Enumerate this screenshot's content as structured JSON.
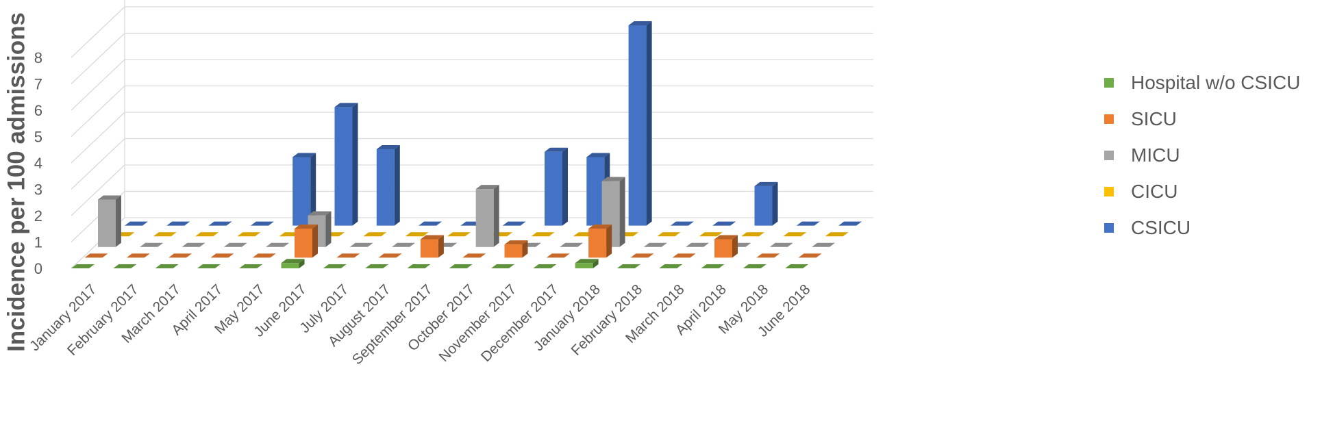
{
  "chart_data": {
    "type": "bar",
    "subtype": "3d-column",
    "title": "",
    "xlabel": "",
    "ylabel": "Incidence per 100 admissions",
    "ylim": [
      0,
      8
    ],
    "yticks": [
      "0",
      "1",
      "2",
      "3",
      "4",
      "5",
      "6",
      "7",
      "8"
    ],
    "grid": true,
    "legend_position": "right",
    "categories": [
      "January 2017",
      "February 2017",
      "March 2017",
      "April 2017",
      "May 2017",
      "June 2017",
      "July 2017",
      "August 2017",
      "September 2017",
      "October 2017",
      "November 2017",
      "December 2017",
      "January 2018",
      "February 2018",
      "March 2018",
      "April 2018",
      "May 2018",
      "June 2018"
    ],
    "series": [
      {
        "name": "Hospital w/o CSICU",
        "color": "#70AD47",
        "values": [
          0,
          0,
          0,
          0,
          0,
          0.2,
          0,
          0,
          0,
          0,
          0,
          0,
          0.2,
          0,
          0,
          0,
          0,
          0
        ]
      },
      {
        "name": "SICU",
        "color": "#ED7D31",
        "values": [
          0,
          0,
          0,
          0,
          0,
          1.1,
          0,
          0,
          0.7,
          0,
          0.5,
          0,
          1.1,
          0,
          0,
          0.7,
          0,
          0
        ]
      },
      {
        "name": "MICU",
        "color": "#A5A5A5",
        "values": [
          1.8,
          0,
          0,
          0,
          0,
          1.2,
          0,
          0,
          0,
          2.2,
          0,
          0,
          2.5,
          0,
          0,
          0,
          0,
          0
        ]
      },
      {
        "name": "CICU",
        "color": "#FFC000",
        "values": [
          0,
          0,
          0,
          0,
          0,
          0,
          0,
          0,
          0,
          0,
          0,
          0,
          0,
          0,
          0,
          0,
          0,
          0
        ]
      },
      {
        "name": "CSICU",
        "color": "#4472C4",
        "values": [
          0,
          0,
          0,
          0,
          2.6,
          4.5,
          2.9,
          0,
          0,
          0,
          2.8,
          2.6,
          7.6,
          0,
          0,
          1.5,
          0,
          0
        ]
      }
    ]
  }
}
